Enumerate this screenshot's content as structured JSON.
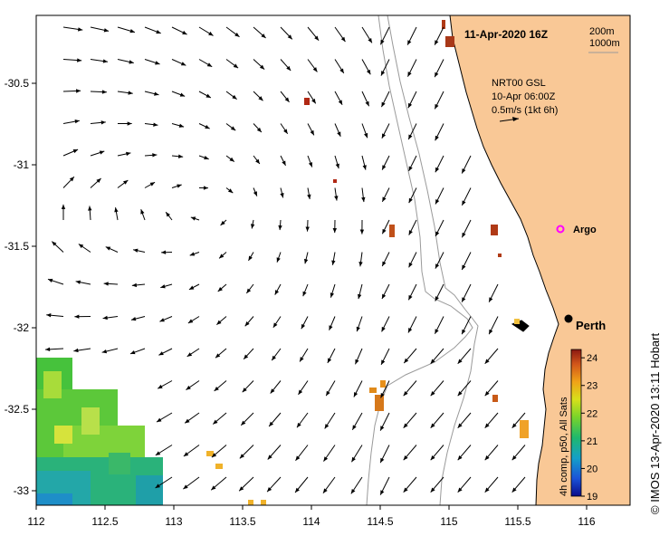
{
  "colors": {
    "land": "#f9c896",
    "coast": "#000000",
    "isobath": "#9a9a9a",
    "arrow": "#000000",
    "argo": "#ff00ff"
  },
  "map": {
    "timestamp": "11-Apr-2020 16Z",
    "isobath_200": "200m",
    "isobath_1000": "1000m",
    "product": "NRT00 GSL",
    "product_time": "10-Apr 06:00Z",
    "scale_speed": "0.5m/s (1kt 6h)",
    "argo_label": "Argo",
    "city_label": "Perth"
  },
  "axes": {
    "lon_ticks": [
      "112",
      "112.5",
      "113",
      "113.5",
      "114",
      "114.5",
      "115",
      "115.5",
      "116"
    ],
    "lat_ticks": [
      "-30.5",
      "-31",
      "-31.5",
      "-32",
      "-32.5",
      "-33"
    ]
  },
  "colorbar": {
    "label": "4h comp, p50, All Sats",
    "ticks": [
      "24",
      "23",
      "22",
      "21",
      "20",
      "19"
    ],
    "min": 19,
    "max": 24.3
  },
  "credit": "© IMOS 13-Apr-2020 13:11 Hobart"
}
